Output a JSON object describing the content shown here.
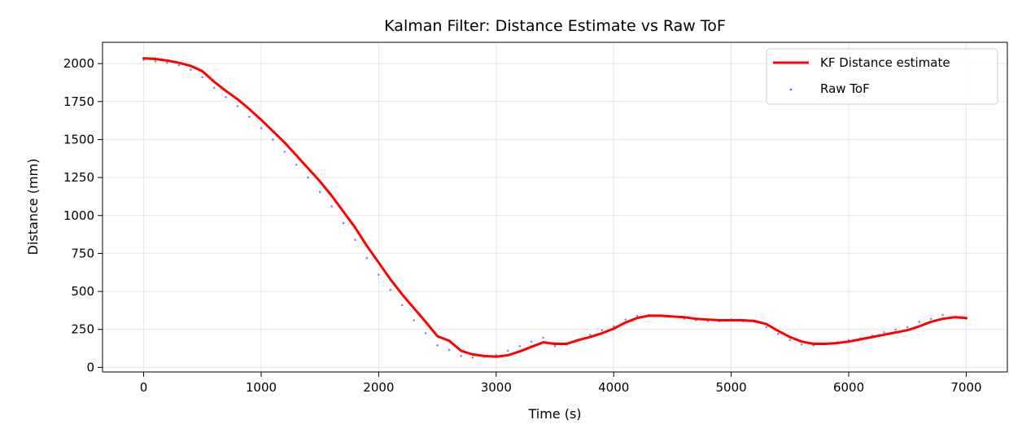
{
  "chart_data": {
    "type": "line",
    "title": "Kalman Filter: Distance Estimate vs Raw ToF",
    "xlabel": "Time (s)",
    "ylabel": "Distance (mm)",
    "xlim": [
      -350,
      7350
    ],
    "ylim": [
      -30,
      2140
    ],
    "xticks": [
      0,
      1000,
      2000,
      3000,
      4000,
      5000,
      6000,
      7000
    ],
    "yticks": [
      0,
      250,
      500,
      750,
      1000,
      1250,
      1500,
      1750,
      2000
    ],
    "grid": true,
    "legend_position": "top-right",
    "colors": {
      "estimate": "#ff0000",
      "raw": "#5b5bf0"
    },
    "series": [
      {
        "name": "KF Distance estimate",
        "kind": "line",
        "x": [
          0,
          100,
          200,
          300,
          400,
          500,
          600,
          700,
          800,
          900,
          1000,
          1100,
          1200,
          1300,
          1400,
          1500,
          1600,
          1700,
          1800,
          1900,
          2000,
          2100,
          2200,
          2300,
          2400,
          2500,
          2600,
          2700,
          2800,
          2900,
          3000,
          3100,
          3200,
          3300,
          3400,
          3500,
          3600,
          3700,
          3800,
          3900,
          4000,
          4100,
          4200,
          4300,
          4400,
          4500,
          4600,
          4700,
          4800,
          4900,
          5000,
          5100,
          5200,
          5300,
          5400,
          5500,
          5600,
          5700,
          5800,
          5900,
          6000,
          6100,
          6200,
          6300,
          6400,
          6500,
          6600,
          6700,
          6800,
          6900,
          7000
        ],
        "values": [
          2035,
          2030,
          2020,
          2005,
          1985,
          1950,
          1880,
          1820,
          1765,
          1700,
          1630,
          1555,
          1480,
          1395,
          1310,
          1225,
          1130,
          1025,
          920,
          800,
          690,
          580,
          480,
          390,
          300,
          205,
          175,
          110,
          85,
          75,
          70,
          80,
          105,
          135,
          165,
          155,
          155,
          180,
          200,
          225,
          255,
          295,
          325,
          340,
          340,
          335,
          330,
          320,
          315,
          310,
          310,
          310,
          305,
          285,
          240,
          200,
          170,
          155,
          155,
          160,
          170,
          185,
          200,
          215,
          230,
          245,
          270,
          300,
          320,
          330,
          325
        ]
      },
      {
        "name": "Raw ToF",
        "kind": "scatter",
        "x": [
          0,
          100,
          200,
          300,
          400,
          500,
          600,
          700,
          800,
          900,
          1000,
          1100,
          1200,
          1300,
          1400,
          1500,
          1600,
          1700,
          1800,
          1900,
          2000,
          2100,
          2200,
          2300,
          2400,
          2500,
          2600,
          2700,
          2800,
          2900,
          3000,
          3100,
          3200,
          3300,
          3400,
          3500,
          3600,
          3700,
          3800,
          3900,
          4000,
          4100,
          4200,
          4300,
          4400,
          4500,
          4600,
          4700,
          4800,
          4900,
          5000,
          5100,
          5200,
          5300,
          5400,
          5500,
          5600,
          5700,
          5800,
          5900,
          6000,
          6100,
          6200,
          6300,
          6400,
          6500,
          6600,
          6700,
          6800,
          6900,
          7000
        ],
        "values": [
          2025,
          2015,
          2005,
          1990,
          1960,
          1910,
          1840,
          1780,
          1720,
          1650,
          1575,
          1500,
          1420,
          1335,
          1250,
          1155,
          1060,
          950,
          840,
          720,
          610,
          510,
          410,
          310,
          225,
          145,
          115,
          75,
          65,
          70,
          80,
          110,
          140,
          170,
          195,
          140,
          150,
          180,
          215,
          245,
          270,
          315,
          340,
          345,
          340,
          335,
          320,
          310,
          305,
          305,
          315,
          305,
          300,
          265,
          220,
          180,
          150,
          145,
          155,
          165,
          180,
          190,
          210,
          230,
          250,
          265,
          300,
          320,
          345,
          330,
          320
        ]
      }
    ]
  }
}
